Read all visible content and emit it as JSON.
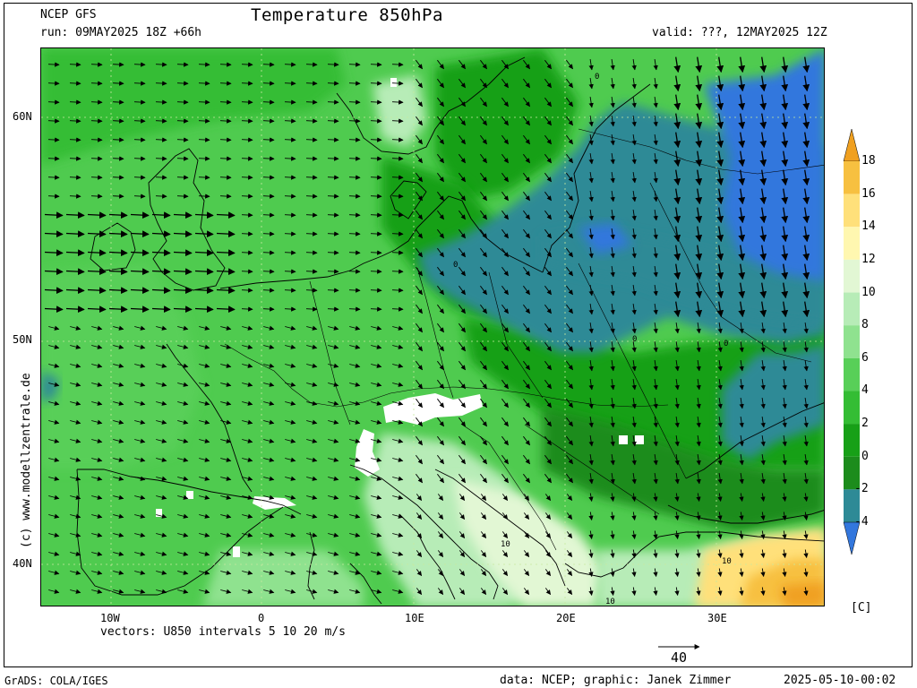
{
  "header": {
    "model": "NCEP GFS",
    "title": "Temperature 850hPa",
    "run": "run: 09MAY2025 18Z +66h",
    "valid": "valid: ???, 12MAY2025 12Z"
  },
  "axes": {
    "lat_labels": [
      "60N",
      "50N",
      "40N"
    ],
    "lon_labels": [
      "10W",
      "0",
      "10E",
      "20E",
      "30E"
    ]
  },
  "vectors_text": "vectors: U850 intervals 5 10 20 m/s",
  "ref_arrow_label": "40",
  "colorbar": {
    "labels": [
      "18",
      "16",
      "14",
      "12",
      "10",
      "8",
      "6",
      "4",
      "2",
      "0",
      "-2",
      "-4"
    ],
    "unit": "[C]",
    "colors": [
      "#f0a020",
      "#f7c040",
      "#ffe07a",
      "#fff7b0",
      "#e2f7d4",
      "#b7ecb7",
      "#8fe28f",
      "#58cf58",
      "#34bd34",
      "#17a017",
      "#1c8c1c",
      "#2e8a96",
      "#3377dd"
    ]
  },
  "map_labels": [
    "10",
    "10",
    "10",
    "0",
    "0",
    "0",
    "0"
  ],
  "side_credit": "(c) www.modellzentrale.de",
  "footer": {
    "left": "GrADS: COLA/IGES",
    "credit": "data: NCEP; graphic: Janek Zimmer",
    "timestamp": "2025-05-10-00:02"
  }
}
